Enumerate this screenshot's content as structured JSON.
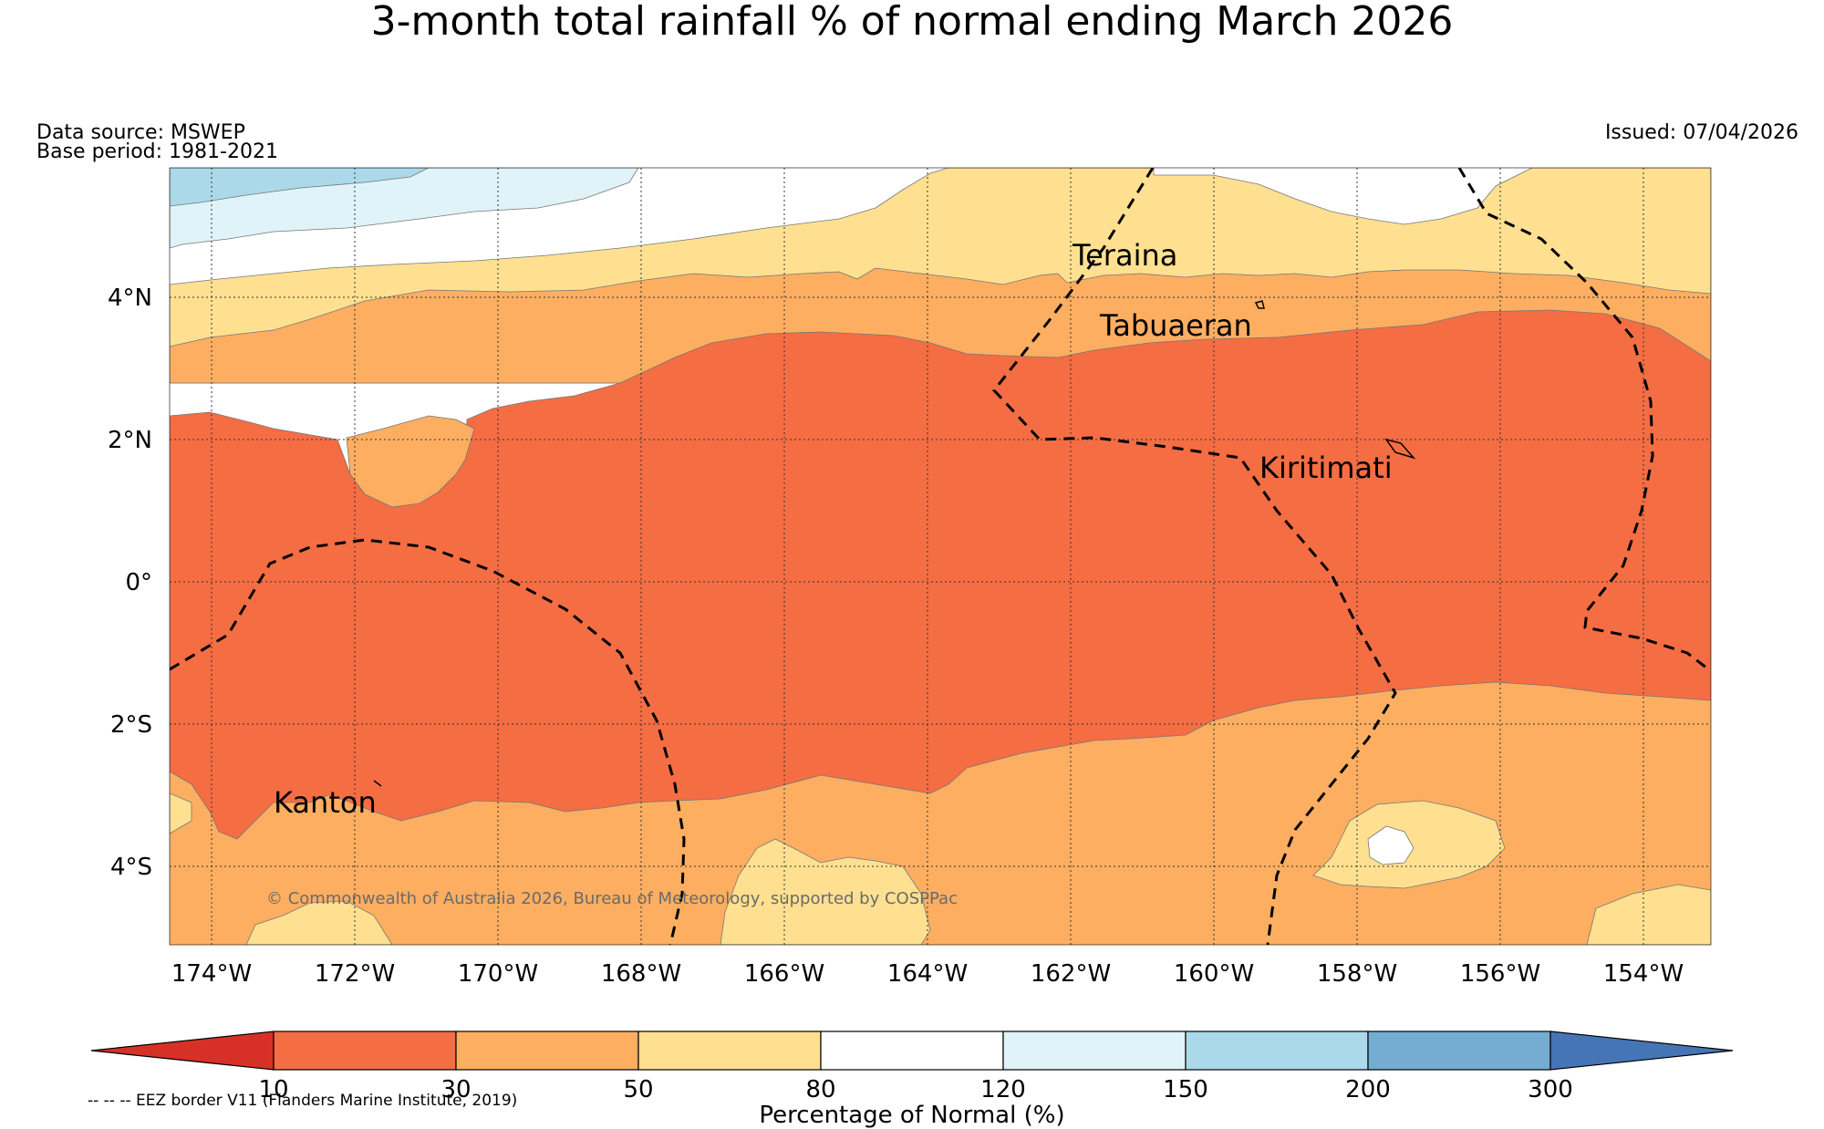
{
  "title": "3-month total rainfall % of normal ending March 2026",
  "header": {
    "data_source": "Data source: MSWEP",
    "base_period": "Base period: 1981-2021",
    "issued": "Issued: 07/04/2026"
  },
  "copyright": "© Commonwealth of Australia 2026, Bureau of Meteorology, supported by COSPPac",
  "map": {
    "lat_labels": [
      "4°N",
      "2°N",
      "0°",
      "2°S",
      "4°S"
    ],
    "lon_labels": [
      "174°W",
      "172°W",
      "170°W",
      "168°W",
      "166°W",
      "164°W",
      "162°W",
      "160°W",
      "158°W",
      "156°W",
      "154°W"
    ],
    "places": [
      "Teraina",
      "Tabuaeran",
      "Kiritimati",
      "Kanton"
    ]
  },
  "legend": {
    "ticks": [
      "10",
      "30",
      "50",
      "80",
      "120",
      "150",
      "200",
      "300"
    ],
    "label": "Percentage of Normal (%)",
    "colors": [
      "#d73027",
      "#f46d43",
      "#fdae61",
      "#fee090",
      "#ffffff",
      "#e0f3f8",
      "#abd9e9",
      "#74add1",
      "#4575b4"
    ]
  },
  "footnote": "-- -- -- EEZ border V11 (Flanders Marine Institute, 2019)"
}
